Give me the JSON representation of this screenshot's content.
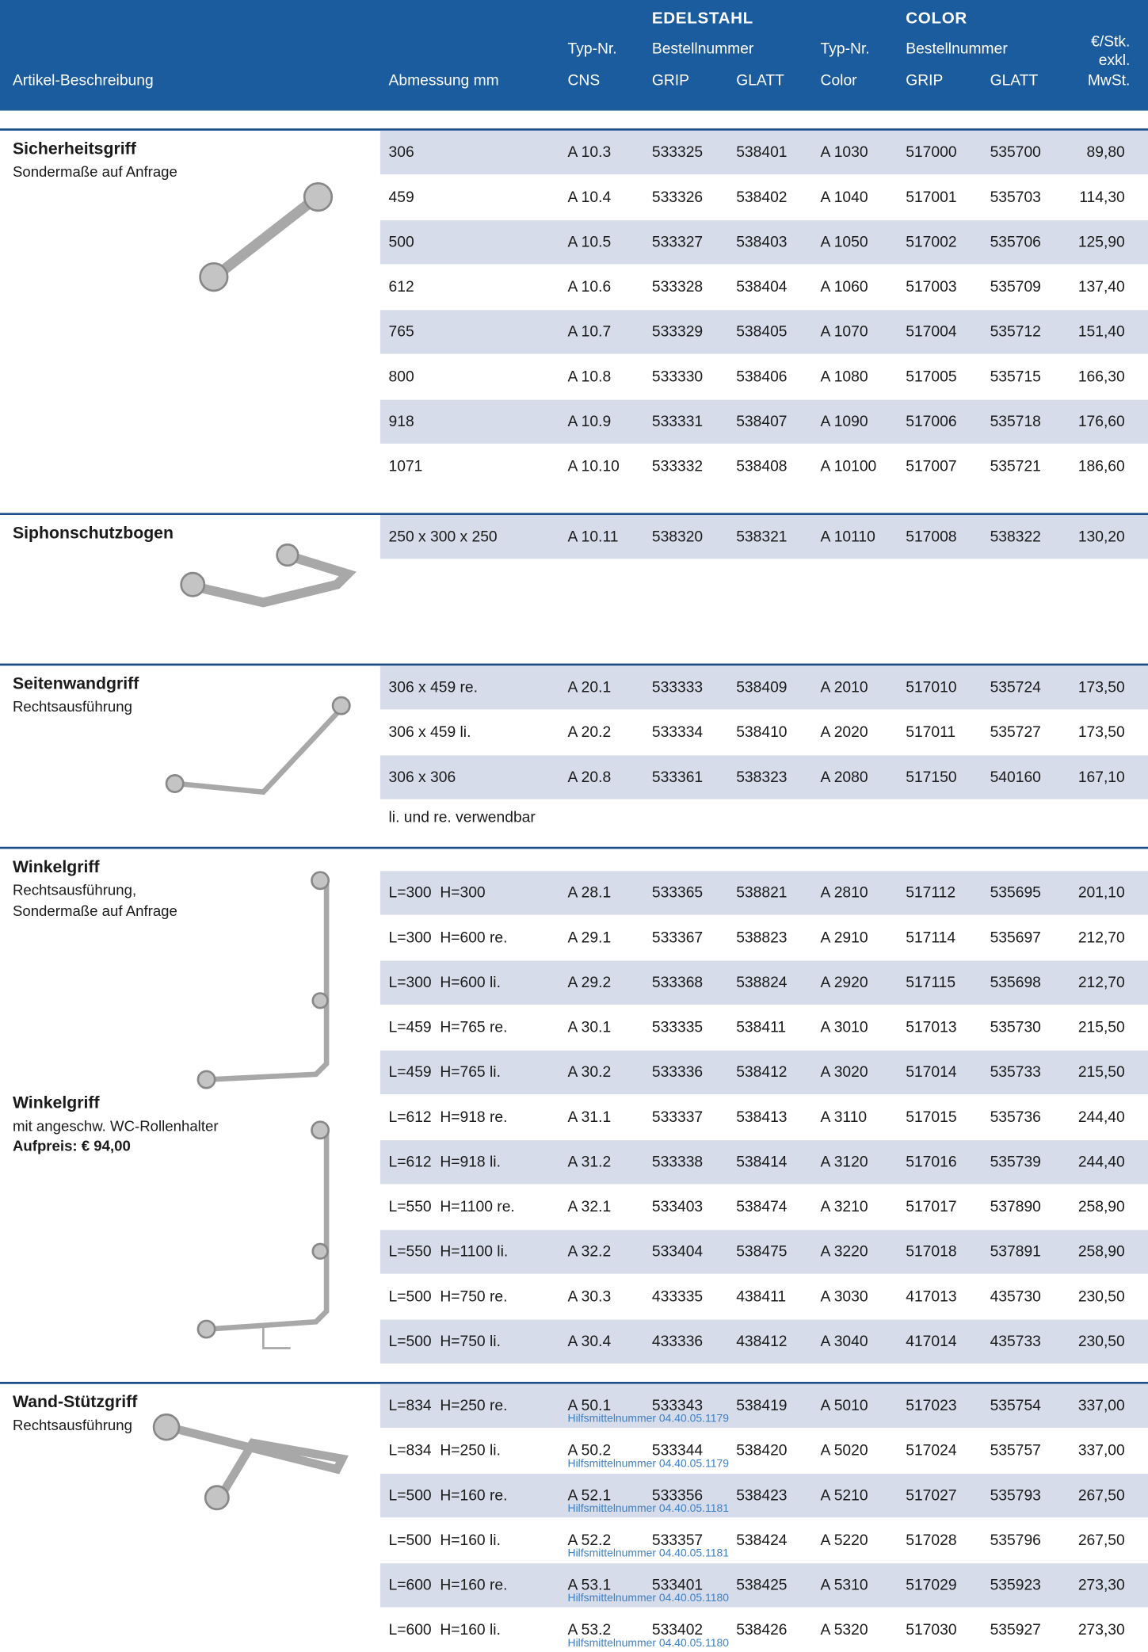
{
  "header": {
    "description": "Artikel-Beschreibung",
    "dimension": "Abmessung mm",
    "edelstahl": "EDELSTAHL",
    "color_group": "COLOR",
    "cns_type": [
      "Typ-Nr.",
      "CNS"
    ],
    "edelstahl_order": "Bestellnummer",
    "edelstahl_grip": "GRIP",
    "edelstahl_glatt": "GLATT",
    "color_type": [
      "Typ-Nr.",
      "Color"
    ],
    "color_order": "Bestellnummer",
    "color_grip": "GRIP",
    "color_glatt": "GLATT",
    "price": [
      "€/Stk.",
      "exkl.",
      "MwSt."
    ]
  },
  "sections": [
    {
      "title": "Sicherheitsgriff",
      "lines": [
        "Sondermaße auf Anfrage"
      ],
      "rows": [
        [
          "306",
          "A 10.3",
          "533325",
          "538401",
          "A 1030",
          "517000",
          "535700",
          "89,80"
        ],
        [
          "459",
          "A 10.4",
          "533326",
          "538402",
          "A 1040",
          "517001",
          "535703",
          "114,30"
        ],
        [
          "500",
          "A 10.5",
          "533327",
          "538403",
          "A 1050",
          "517002",
          "535706",
          "125,90"
        ],
        [
          "612",
          "A 10.6",
          "533328",
          "538404",
          "A 1060",
          "517003",
          "535709",
          "137,40"
        ],
        [
          "765",
          "A 10.7",
          "533329",
          "538405",
          "A 1070",
          "517004",
          "535712",
          "151,40"
        ],
        [
          "800",
          "A 10.8",
          "533330",
          "538406",
          "A 1080",
          "517005",
          "535715",
          "166,30"
        ],
        [
          "918",
          "A 10.9",
          "533331",
          "538407",
          "A 1090",
          "517006",
          "535718",
          "176,60"
        ],
        [
          "1071",
          "A 10.10",
          "533332",
          "538408",
          "A 10100",
          "517007",
          "535721",
          "186,60"
        ]
      ]
    },
    {
      "title": "Siphonschutzbogen",
      "lines": [],
      "rows": [
        [
          "250 x 300 x 250",
          "A 10.11",
          "538320",
          "538321",
          "A 10110",
          "517008",
          "538322",
          "130,20"
        ]
      ]
    },
    {
      "title": "Seitenwandgriff",
      "lines": [
        "Rechtsausführung"
      ],
      "rows": [
        [
          "306 x 459 re.",
          "A 20.1",
          "533333",
          "538409",
          "A 2010",
          "517010",
          "535724",
          "173,50"
        ],
        [
          "306 x 459 li.",
          "A 20.2",
          "533334",
          "538410",
          "A 2020",
          "517011",
          "535727",
          "173,50"
        ],
        [
          "306 x 306",
          "A 20.8",
          "533361",
          "538323",
          "A 2080",
          "517150",
          "540160",
          "167,10"
        ]
      ],
      "note": "li. und re. verwendbar"
    },
    {
      "title": "Winkelgriff",
      "lines": [
        "Rechtsausführung,",
        "Sondermaße auf Anfrage"
      ],
      "rows": [
        [
          "L=300  H=300",
          "A 28.1",
          "533365",
          "538821",
          "A 2810",
          "517112",
          "535695",
          "201,10"
        ],
        [
          "L=300  H=600 re.",
          "A 29.1",
          "533367",
          "538823",
          "A 2910",
          "517114",
          "535697",
          "212,70"
        ],
        [
          "L=300  H=600 li.",
          "A 29.2",
          "533368",
          "538824",
          "A 2920",
          "517115",
          "535698",
          "212,70"
        ],
        [
          "L=459  H=765 re.",
          "A 30.1",
          "533335",
          "538411",
          "A 3010",
          "517013",
          "535730",
          "215,50"
        ],
        [
          "L=459  H=765 li.",
          "A 30.2",
          "533336",
          "538412",
          "A 3020",
          "517014",
          "535733",
          "215,50"
        ],
        [
          "L=612  H=918 re.",
          "A 31.1",
          "533337",
          "538413",
          "A 3110",
          "517015",
          "535736",
          "244,40"
        ],
        [
          "L=612  H=918 li.",
          "A 31.2",
          "533338",
          "538414",
          "A 3120",
          "517016",
          "535739",
          "244,40"
        ],
        [
          "L=550  H=1100 re.",
          "A 32.1",
          "533403",
          "538474",
          "A 3210",
          "517017",
          "537890",
          "258,90"
        ],
        [
          "L=550  H=1100 li.",
          "A 32.2",
          "533404",
          "538475",
          "A 3220",
          "517018",
          "537891",
          "258,90"
        ],
        [
          "L=500  H=750 re.",
          "A 30.3",
          "433335",
          "438411",
          "A 3030",
          "417013",
          "435730",
          "230,50"
        ],
        [
          "L=500  H=750 li.",
          "A 30.4",
          "433336",
          "438412",
          "A 3040",
          "417014",
          "435733",
          "230,50"
        ]
      ],
      "extra": {
        "title": "Winkelgriff",
        "lines": [
          "mit angeschw. WC-Rollenhalter"
        ],
        "surcharge": "Aufpreis: € 94,00"
      }
    },
    {
      "title": "Wand-Stützgriff",
      "lines": [
        "Rechtsausführung"
      ],
      "rows": [
        [
          "L=834  H=250 re.",
          "A 50.1",
          "533343",
          "538419",
          "A 5010",
          "517023",
          "535754",
          "337,00"
        ],
        [
          "L=834  H=250 li.",
          "A 50.2",
          "533344",
          "538420",
          "A 5020",
          "517024",
          "535757",
          "337,00"
        ],
        [
          "L=500  H=160 re.",
          "A 52.1",
          "533356",
          "538423",
          "A 5210",
          "517027",
          "535793",
          "267,50"
        ],
        [
          "L=500  H=160 li.",
          "A 52.2",
          "533357",
          "538424",
          "A 5220",
          "517028",
          "535796",
          "267,50"
        ],
        [
          "L=600  H=160 re.",
          "A 53.1",
          "533401",
          "538425",
          "A 5310",
          "517029",
          "535923",
          "273,30"
        ],
        [
          "L=600  H=160 li.",
          "A 53.2",
          "533402",
          "538426",
          "A 5320",
          "517030",
          "535927",
          "273,30"
        ]
      ],
      "aids": [
        "Hilfsmittelnummer 04.40.05.1179",
        "Hilfsmittelnummer 04.40.05.1179",
        "Hilfsmittelnummer 04.40.05.1181",
        "Hilfsmittelnummer 04.40.05.1181",
        "Hilfsmittelnummer 04.40.05.1180",
        "Hilfsmittelnummer 04.40.05.1180"
      ]
    }
  ]
}
